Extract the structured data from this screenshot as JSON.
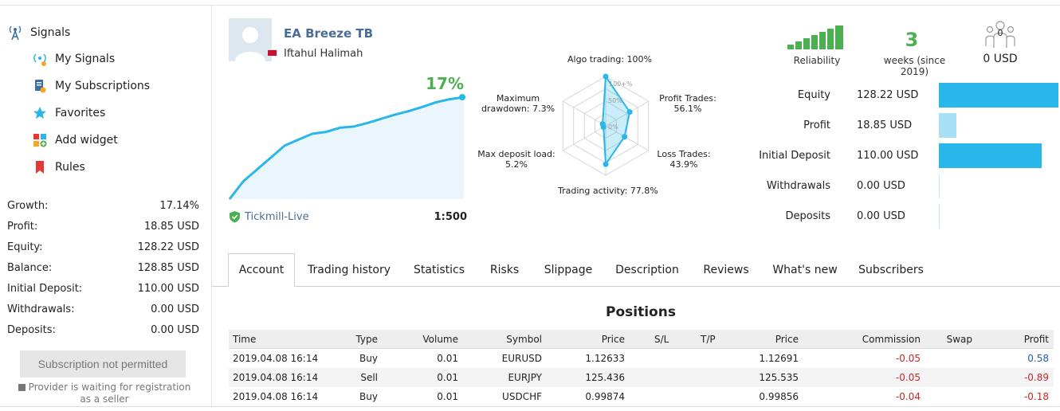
{
  "sidebar": {
    "signals_label": "Signals",
    "items": [
      {
        "label": "My Signals",
        "icon": "my-signals-icon"
      },
      {
        "label": "My Subscriptions",
        "icon": "subscriptions-icon"
      },
      {
        "label": "Favorites",
        "icon": "star-icon"
      },
      {
        "label": "Add widget",
        "icon": "widget-icon"
      },
      {
        "label": "Rules",
        "icon": "bookmark-icon"
      }
    ],
    "stats": [
      {
        "label": "Growth:",
        "value": "17.14%"
      },
      {
        "label": "Profit:",
        "value": "18.85 USD"
      },
      {
        "label": "Equity:",
        "value": "128.22 USD"
      },
      {
        "label": "Balance:",
        "value": "128.85 USD"
      },
      {
        "label": "Initial Deposit:",
        "value": "110.00 USD"
      },
      {
        "label": "Withdrawals:",
        "value": "0.00 USD"
      },
      {
        "label": "Deposits:",
        "value": "0.00 USD"
      }
    ],
    "subscribe_button": "Subscription not permitted",
    "provider_note": "Provider is waiting for registration as a seller"
  },
  "header": {
    "signal_name": "EA Breeze TB",
    "author": "Iftahul Halimah",
    "growth": "17%",
    "broker": "Tickmill-Live",
    "leverage": "1:500"
  },
  "growth_chart": {
    "type": "area",
    "values": [
      0,
      3,
      5,
      7,
      9,
      10,
      11,
      11.3,
      12,
      12.2,
      12.8,
      13.5,
      14.2,
      14.8,
      15.5,
      16.3,
      16.8,
      17.14
    ],
    "color": "#29b6e8"
  },
  "radar": {
    "axes": [
      {
        "label": "Algo trading: 100%",
        "value": 100
      },
      {
        "label": "Profit Trades:",
        "label2": "56.1%",
        "value": 56.1
      },
      {
        "label": "Loss Trades:",
        "label2": "43.9%",
        "value": 43.9
      },
      {
        "label": "Trading activity: 77.8%",
        "value": 77.8
      },
      {
        "label": "Max deposit load:",
        "label2": "5.2%",
        "value": 5.2
      },
      {
        "label": "Maximum",
        "label2": "drawdown: 7.3%",
        "value": 7.3
      }
    ],
    "ring_labels": [
      "100+%",
      "50%",
      "0%"
    ],
    "color": "#29b6e8"
  },
  "metrics": {
    "reliability_label": "Reliability",
    "weeks": "3",
    "weeks_label": "weeks (since 2019)",
    "subscribers_count": "0",
    "subscribers_usd": "0 USD"
  },
  "account_summary": {
    "max": 128.22,
    "rows": [
      {
        "label": "Equity",
        "value": "128.22 USD",
        "amount": 128.22,
        "color": "#29b6e8"
      },
      {
        "label": "Profit",
        "value": "18.85 USD",
        "amount": 18.85,
        "color": "#a7e0f5"
      },
      {
        "label": "Initial Deposit",
        "value": "110.00 USD",
        "amount": 110.0,
        "color": "#29b6e8"
      },
      {
        "label": "Withdrawals",
        "value": "0.00 USD",
        "amount": 0,
        "color": "#a7e0f5"
      },
      {
        "label": "Deposits",
        "value": "0.00 USD",
        "amount": 0,
        "color": "#a7e0f5"
      }
    ]
  },
  "tabs": [
    "Account",
    "Trading history",
    "Statistics",
    "Risks",
    "Slippage",
    "Description",
    "Reviews",
    "What's new",
    "Subscribers"
  ],
  "positions": {
    "title": "Positions",
    "columns": [
      "Time",
      "Type",
      "Volume",
      "Symbol",
      "Price",
      "S/L",
      "T/P",
      "Price",
      "Commission",
      "Swap",
      "Profit"
    ],
    "rows": [
      {
        "time": "2019.04.08 16:14",
        "type": "Buy",
        "volume": "0.01",
        "symbol": "EURUSD",
        "price_open": "1.12633",
        "sl": "",
        "tp": "",
        "price": "1.12691",
        "commission": "-0.05",
        "swap": "",
        "profit": "0.58"
      },
      {
        "time": "2019.04.08 16:14",
        "type": "Sell",
        "volume": "0.01",
        "symbol": "EURJPY",
        "price_open": "125.436",
        "sl": "",
        "tp": "",
        "price": "125.535",
        "commission": "-0.05",
        "swap": "",
        "profit": "-0.89"
      },
      {
        "time": "2019.04.08 16:14",
        "type": "Buy",
        "volume": "0.01",
        "symbol": "USDCHF",
        "price_open": "0.99874",
        "sl": "",
        "tp": "",
        "price": "0.99856",
        "commission": "-0.04",
        "swap": "",
        "profit": "-0.18"
      }
    ]
  }
}
